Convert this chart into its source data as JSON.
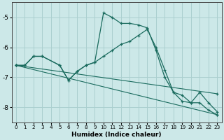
{
  "xlabel": "Humidex (Indice chaleur)",
  "background_color": "#cce8e8",
  "grid_color": "#aacfcf",
  "line_color": "#1a6b5e",
  "xlim": [
    -0.5,
    23.5
  ],
  "ylim": [
    -8.5,
    -4.5
  ],
  "yticks": [
    -8,
    -7,
    -6,
    -5
  ],
  "xticks": [
    0,
    1,
    2,
    3,
    4,
    5,
    6,
    7,
    8,
    9,
    10,
    11,
    12,
    13,
    14,
    15,
    16,
    17,
    18,
    19,
    20,
    21,
    22,
    23
  ],
  "line1_x": [
    0,
    1,
    2,
    3,
    5,
    6,
    7,
    8,
    9,
    10,
    11,
    12,
    13,
    14,
    15,
    16,
    17,
    18,
    19,
    20,
    21,
    22,
    23
  ],
  "line1_y": [
    -6.6,
    -6.6,
    -6.3,
    -6.3,
    -6.6,
    -7.1,
    -6.8,
    -6.6,
    -6.5,
    -4.85,
    -5.0,
    -5.2,
    -5.2,
    -5.25,
    -5.35,
    -6.1,
    -7.0,
    -7.5,
    -7.8,
    -7.85,
    -7.85,
    -8.1,
    -8.25
  ],
  "line2_x": [
    0,
    1,
    2,
    3,
    5,
    6,
    7,
    8,
    9,
    10,
    11,
    12,
    13,
    14,
    15,
    16,
    17,
    18,
    19,
    20,
    21,
    22,
    23
  ],
  "line2_y": [
    -6.6,
    -6.6,
    -6.3,
    -6.3,
    -6.6,
    -7.1,
    -6.8,
    -6.6,
    -6.5,
    -6.3,
    -6.1,
    -5.9,
    -5.8,
    -5.6,
    -5.4,
    -6.0,
    -6.75,
    -7.5,
    -7.6,
    -7.85,
    -7.5,
    -7.85,
    -8.15
  ],
  "line3_x": [
    0,
    23
  ],
  "line3_y": [
    -6.6,
    -7.55
  ],
  "line4_x": [
    0,
    23
  ],
  "line4_y": [
    -6.6,
    -8.25
  ],
  "figsize": [
    3.2,
    2.0
  ],
  "dpi": 100
}
